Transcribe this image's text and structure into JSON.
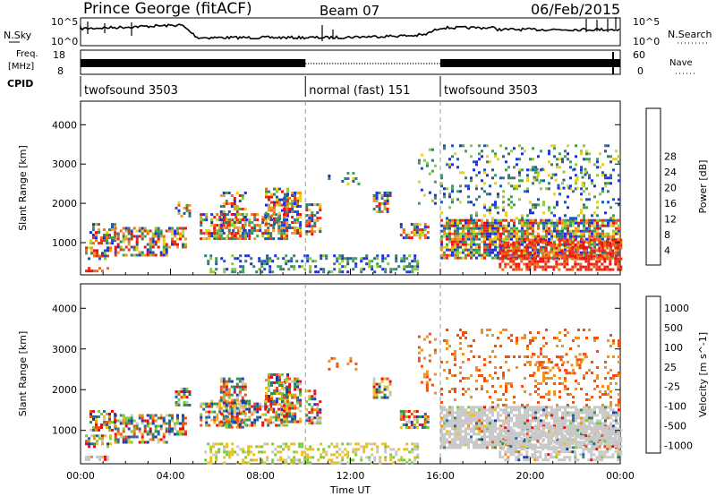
{
  "header": {
    "station": "Prince George (fitACF)",
    "beam": "Beam 07",
    "date": "06/Feb/2015"
  },
  "panels": {
    "nsky_label": "N.Sky",
    "nsearch_label": "N.Search",
    "freq_label_line1": "Freq.",
    "freq_label_line2": "[MHz]",
    "nave_label": "Nave",
    "cpid_label": "CPID",
    "nsky_ticks": [
      "10^5",
      "10^0"
    ],
    "nsearch_ticks": [
      "10^5",
      "10^0"
    ],
    "freq_ticks": [
      "18",
      "8"
    ],
    "nave_ticks": [
      "60",
      "0"
    ]
  },
  "cpid_segments": [
    {
      "label": "twofsound 3503",
      "start_hour": 0,
      "end_hour": 10
    },
    {
      "label": "normal (fast) 151",
      "start_hour": 10,
      "end_hour": 16
    },
    {
      "label": "twofsound 3503",
      "start_hour": 16,
      "end_hour": 24
    }
  ],
  "colors": {
    "data_line": "#000000",
    "vline": "#999999"
  },
  "chart_data": [
    {
      "type": "heatmap",
      "name": "power",
      "xlabel": "",
      "ylabel": "Slant Range [km]",
      "xlim": [
        0,
        24
      ],
      "ylim": [
        180,
        4600
      ],
      "yticks": [
        1000,
        2000,
        3000,
        4000
      ],
      "colorbar": {
        "label": "Power [dB]",
        "ticks": [
          "4",
          "8",
          "12",
          "16",
          "20",
          "24",
          "28"
        ],
        "colors": [
          "#1f2fe0",
          "#1f58b0",
          "#3a7a78",
          "#45a055",
          "#8ec93a",
          "#e8d020",
          "#f09a20",
          "#f06a18",
          "#e83018",
          "#f01010"
        ]
      }
    },
    {
      "type": "heatmap",
      "name": "velocity",
      "xlabel": "Time UT",
      "ylabel": "Slant Range [km]",
      "xlim": [
        0,
        24
      ],
      "ylim": [
        180,
        4600
      ],
      "yticks": [
        1000,
        2000,
        3000,
        4000
      ],
      "xtick_labels": [
        "00:00",
        "04:00",
        "08:00",
        "12:00",
        "16:00",
        "20:00",
        "00:00"
      ],
      "colorbar": {
        "label": "Velocity [m s^-1]",
        "ticks": [
          "1000",
          "500",
          "100",
          "25",
          "-25",
          "-100",
          "-500",
          "-1000"
        ],
        "colors": [
          "#1f3aa8",
          "#2a6a9a",
          "#3a9050",
          "#7acc3a",
          "#c8c8c8",
          "#e8c020",
          "#f09020",
          "#f05010",
          "#e81010"
        ]
      }
    }
  ]
}
